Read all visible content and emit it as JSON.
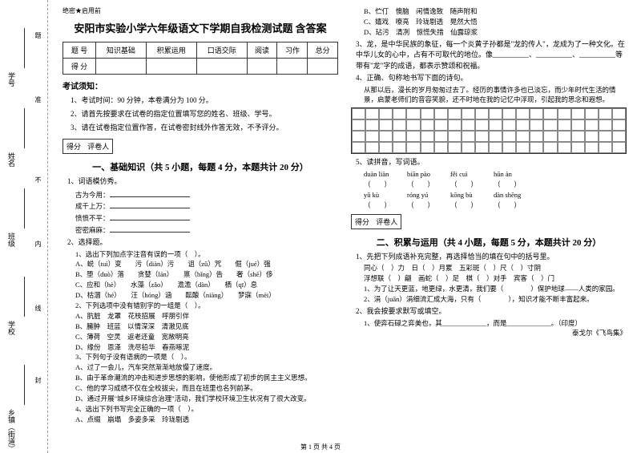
{
  "header_tag": "绝密★启用前",
  "title": "安阳市实验小学六年级语文下学期自我检测试题 含答案",
  "score_table": {
    "row1": [
      "题 号",
      "知识基础",
      "积累运用",
      "口语交际",
      "阅读",
      "习作",
      "总分"
    ],
    "row2_label": "得 分"
  },
  "notice_title": "考试须知：",
  "notices": [
    "1、考试时间：90 分钟，本卷满分为 100 分。",
    "2、请首先按要求在试卷的指定位置填写您的姓名、班级、学号。",
    "3、请在试卷指定位置作答，在试卷密封线外作答无效，不予评分。"
  ],
  "scorebox": {
    "l": "得分",
    "r": "评卷人"
  },
  "section1_title": "一、基础知识（共 5 小题，每题 4 分，本题共计 20 分）",
  "q1": {
    "stem": "1、词语模仿秀。",
    "lines": [
      "古为今用：",
      "成千上万：",
      "愤愤不平：",
      "密密麻麻："
    ]
  },
  "q2": {
    "stem": "2、选择题。",
    "sub1": "1、选出下列加点字注音有误的一项（　）。",
    "opts1": [
      "A、蜕（tuì）变　　污（diàn）污　　诅（zǔ）咒　　倔（jué）强",
      "B、堕（duò）落　　贪婪（lán）　　禀（bǐng）告　　奢（shē）侈",
      "C、应和（hè）　　水藻（zǎo）　　澹澹（dàn）　　栖（qī）息",
      "D、枯涸（hé）　　汪（hóng）涵　　酝酿（niàng）　　梦寐（mèi）"
    ],
    "sub2": "2、下列选项中没有错别字的一组是（　）。",
    "opts2": [
      "A、肮脏　龙罩　花枝招展　呼朋引伴",
      "B、臃肿　班蓝　以情深深　清澈见底",
      "C、薄荷　空灵　返老还童　宽敞明亮",
      "D、缘份　恩泽　洗尽铅华　春燕啄泥"
    ],
    "sub3": "3、下列句子没有语病的一项是（　）。",
    "opts3": [
      "A、过了一会儿，汽车突然渐渐地放慢了速度。",
      "B、由于革命潮流的冲击和进步思想的影响，使他形成了初步的民主主义思想。",
      "C、他的学习成绩不仅在全校拔尖，而且在班里也名列前茅。",
      "D、通过开展\"城乡环境综合治理\"活动，我们学校环境卫生状况有了很大改变。"
    ],
    "sub4": "4、选出下列书写完全正确的一项（　）。",
    "opts4_a": "A、点缀　崩塌　多姿多采　玲珑剔透"
  },
  "col2": {
    "opts4_rest": [
      "B、伫仃　懊脑　闲情逸致　随声附和",
      "C、嬉戏　嘹亮　玲珑剔透　晃然大悟",
      "D、玷污　清冽　惊慌失措　仙露琼浆"
    ],
    "q3": "3、龙，是中华民族的象征，每一个炎黄子孙都是\"龙的传人\"，龙成为了一种文化。在中华儿女的心中，占有不可取代的地位。像__________、__________、__________等带有\"龙\"字的成语，都表示赞颂和祝福。",
    "q4_stem": "4、正确、句称地书写下面的诗句。",
    "q4_text": "从那以后，漫长的岁月匆匆过去了。经历的事情许多也已淡忘，而少年时代生活的情景，启蒙老师们的音容笑貌，还不时地在我的记忆中浮现，引起我的思念和遐想。",
    "q5_stem": "5、读拼音，写词语。",
    "pinyin": [
      "duàn liàn",
      "biān pào",
      "fěi cuì",
      "hūn àn"
    ],
    "pinyin2": [
      "yǔ kù",
      "róng yú",
      "kōng bù",
      "dàn shēng"
    ]
  },
  "section2_title": "二、积累与运用（共 4 小题，每题 5 分，本题共计 20 分）",
  "s2q1": {
    "stem": "1、先把下列成语补充完整，再选择恰当的填在句中的括号里。",
    "line1": "同心（　）力　日（　）月累　五彩斑（　）尺（　）寸阴",
    "line2": "浮想联（　）翩　画蛇（　）足　棋（　）对手　宾客（　）门",
    "line3": "1、为了让天更蓝，地更绿，水更清，我们要（　　　　）保护地球——人类的家园。",
    "line4": "2、涓（juān）涓细流汇成大海，只有（　　　　），知识才能不断丰富起来。"
  },
  "s2q2": {
    "stem": "2、我会按要求默写或填空。",
    "line1": "1、使弈石碌之弈美也，其_____________，而是_____________。（印度）",
    "line2": "泰戈尔《飞鸟集》"
  },
  "binding": {
    "l1": "乡镇（街道）",
    "l2": "学校",
    "l3": "班级",
    "l4": "姓名",
    "l5": "学号",
    "m1": "封",
    "m2": "线",
    "m3": "内",
    "m4": "不",
    "m5": "准",
    "m6": "题"
  },
  "footer": "第 1 页 共 4 页"
}
